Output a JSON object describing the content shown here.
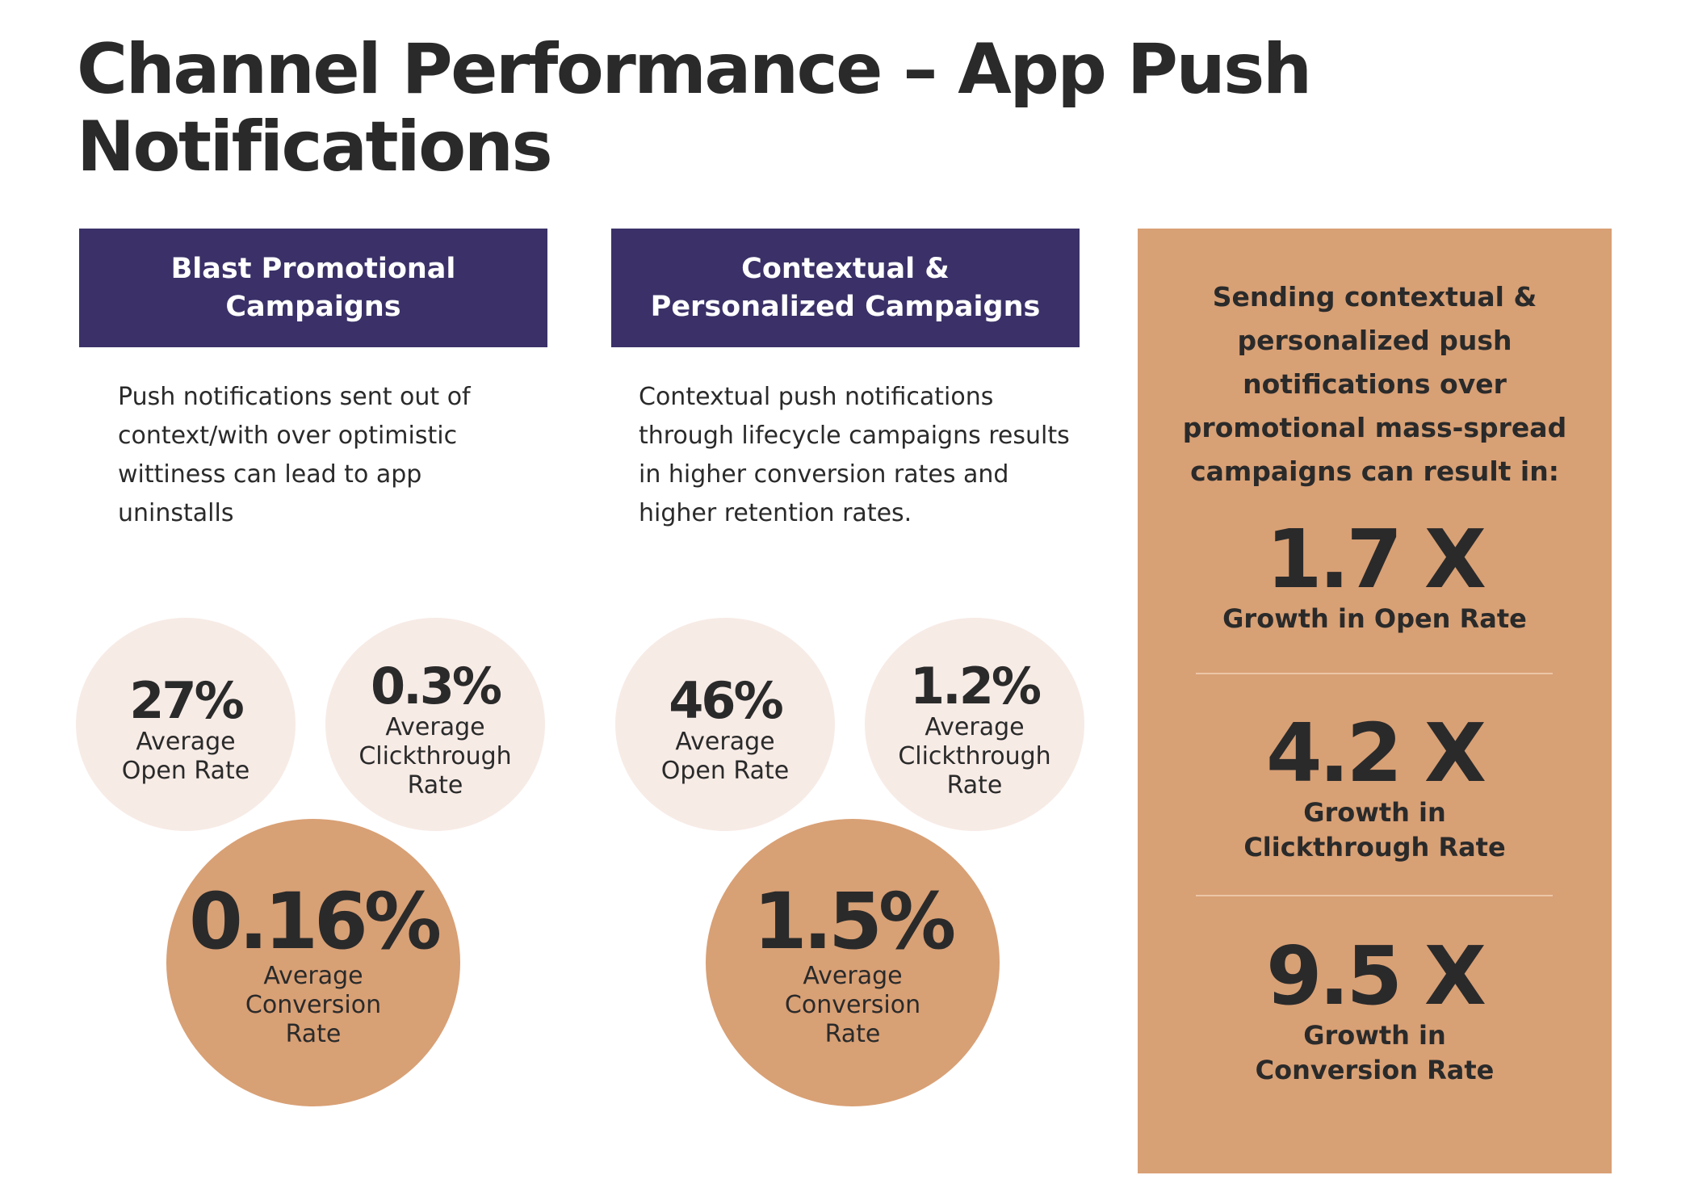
{
  "title": "Channel Performance – App Push Notifications",
  "blast": {
    "header": "Blast Promotional Campaigns",
    "description": "Push notifications sent out of context/with over optimistic wittiness can lead to app uninstalls",
    "open_rate": {
      "value": "27%",
      "label": "Average Open Rate"
    },
    "clickthrough_rate": {
      "value": "0.3%",
      "label": "Average Clickthrough Rate"
    },
    "conversion_rate": {
      "value": "0.16%",
      "label": "Average Conversion Rate"
    }
  },
  "contextual": {
    "header": "Contextual & Personalized Campaigns",
    "description": "Contextual push notifications through lifecycle campaigns results in higher conversion rates and higher retention rates.",
    "open_rate": {
      "value": "46%",
      "label": "Average Open Rate"
    },
    "clickthrough_rate": {
      "value": "1.2%",
      "label": "Average Clickthrough Rate"
    },
    "conversion_rate": {
      "value": "1.5%",
      "label": "Average Conversion Rate"
    }
  },
  "sidebar": {
    "intro": "Sending contextual & personalized push notifications over promotional mass-spread campaigns can result in:",
    "stats": [
      {
        "value": "1.7 X",
        "caption": "Growth in Open Rate"
      },
      {
        "value": "4.2 X",
        "caption": "Growth in Clickthrough Rate"
      },
      {
        "value": "9.5 X",
        "caption": "Growth in Conversion Rate"
      }
    ]
  },
  "colors": {
    "header_bg": "#3b3168",
    "accent": "#d8a075",
    "light_circle": "#f7ebe6",
    "text": "#2a2a2a"
  }
}
